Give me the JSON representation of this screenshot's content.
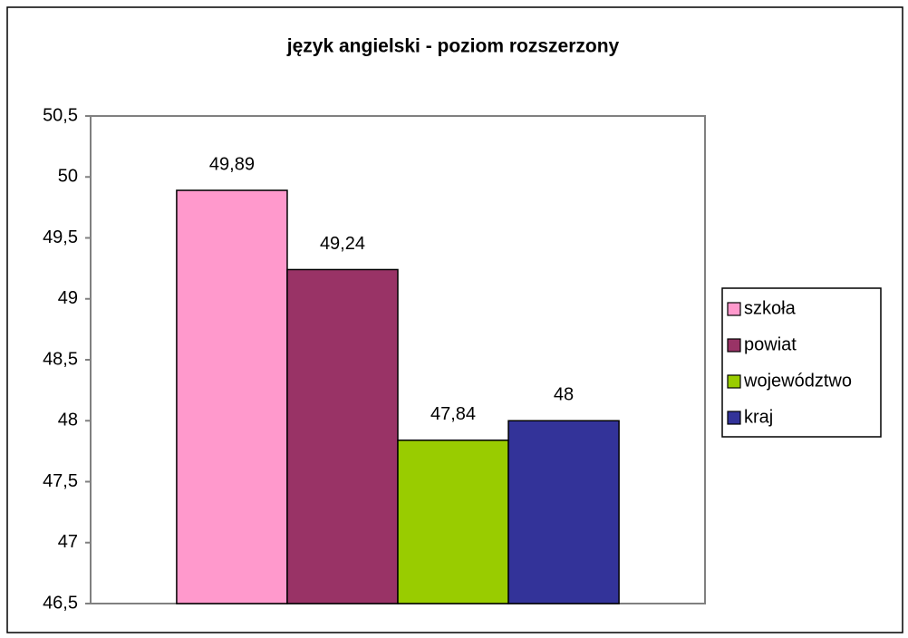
{
  "chart_data": {
    "type": "bar",
    "title": "język angielski - poziom rozszerzony",
    "categories": [
      null
    ],
    "series": [
      {
        "name": "szkoła",
        "color": "#ff99cc",
        "values": [
          49.89
        ],
        "value_labels": [
          "49,89"
        ]
      },
      {
        "name": "powiat",
        "color": "#993366",
        "values": [
          49.24
        ],
        "value_labels": [
          "49,24"
        ]
      },
      {
        "name": "województwo",
        "color": "#99cc00",
        "values": [
          47.84
        ],
        "value_labels": [
          "47,84"
        ]
      },
      {
        "name": "kraj",
        "color": "#333399",
        "values": [
          48
        ],
        "value_labels": [
          "48"
        ]
      }
    ],
    "ylim": [
      46.5,
      50.5
    ],
    "yticks": [
      {
        "value": 46.5,
        "label": "46,5"
      },
      47,
      {
        "value": 47.5,
        "label": "47,5"
      },
      48,
      {
        "value": 48.5,
        "label": "48,5"
      },
      49,
      {
        "value": 49.5,
        "label": "49,5"
      },
      50,
      {
        "value": 50.5,
        "label": "50,5"
      }
    ],
    "grid": false,
    "legend": "right"
  }
}
